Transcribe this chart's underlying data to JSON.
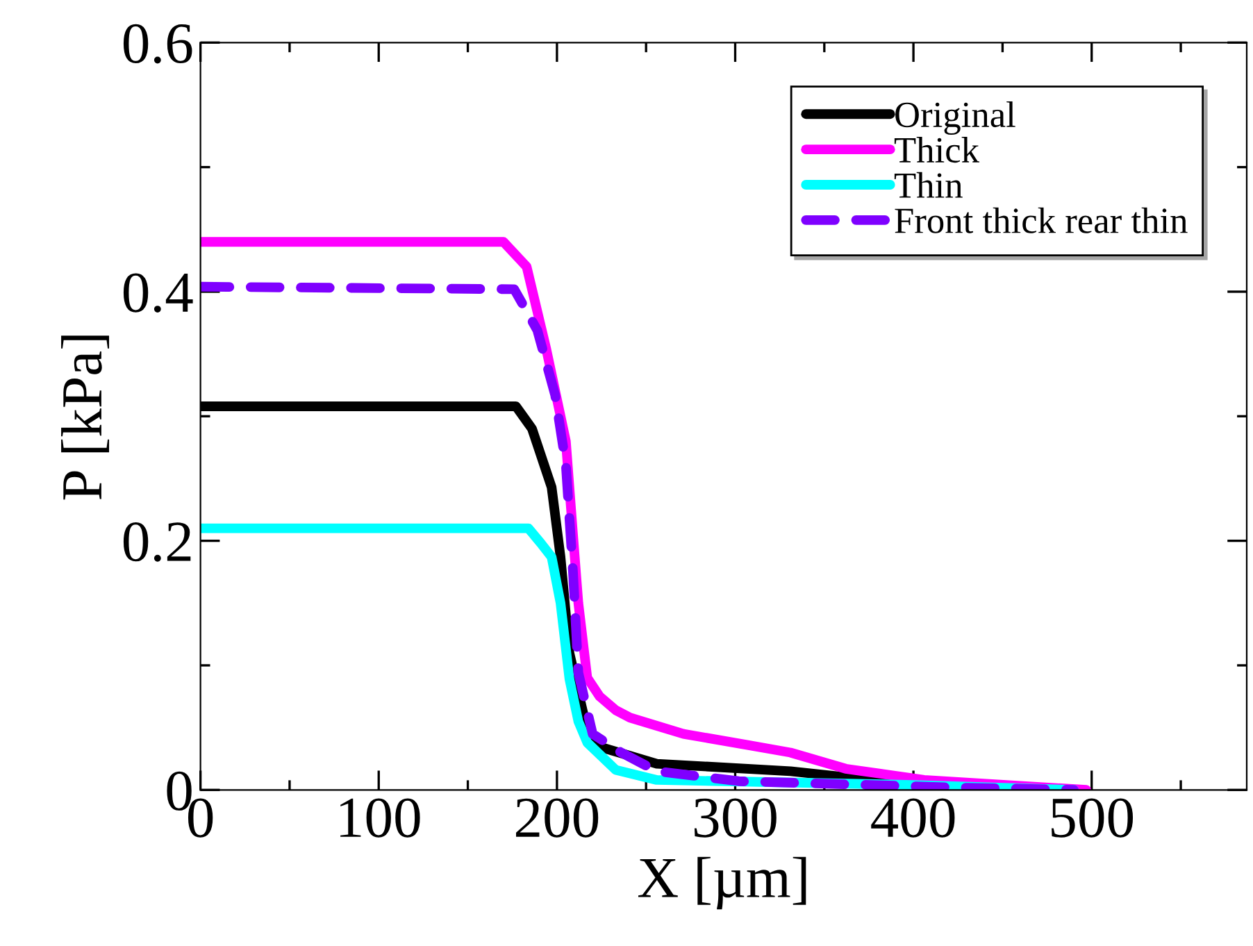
{
  "chart_data": {
    "type": "line",
    "xlabel": "X [µm]",
    "ylabel": "P [kPa]",
    "xlim": [
      0,
      587
    ],
    "ylim": [
      0,
      0.6
    ],
    "xticks": [
      0,
      100,
      200,
      300,
      400,
      500
    ],
    "yticks": [
      0,
      {
        "value": 0.2,
        "label": "0.2"
      },
      {
        "value": 0.4,
        "label": "0.4"
      },
      {
        "value": 0.6,
        "label": "0.6"
      }
    ],
    "grid": false,
    "legend": "top right",
    "marker": "none",
    "series": [
      {
        "name": "Original",
        "color": "#000000",
        "line_style": "solid",
        "x": [
          0,
          177,
          186,
          197,
          202,
          207,
          215,
          223,
          256,
          331,
          383,
          430
        ],
        "values": [
          0.308,
          0.308,
          0.29,
          0.243,
          0.187,
          0.11,
          0.06,
          0.035,
          0.021,
          0.015,
          0.007,
          0
        ]
      },
      {
        "name": "Thick",
        "color": "#ff00ff",
        "line_style": "solid",
        "x": [
          0,
          170,
          183,
          194,
          205,
          209,
          212,
          217,
          224,
          233,
          241,
          271,
          307,
          331,
          362,
          406,
          497
        ],
        "values": [
          0.44,
          0.44,
          0.42,
          0.354,
          0.28,
          0.205,
          0.15,
          0.09,
          0.075,
          0.064,
          0.058,
          0.045,
          0.036,
          0.03,
          0.017,
          0.008,
          0
        ]
      },
      {
        "name": "Thin",
        "color": "#00ffff",
        "line_style": "solid",
        "x": [
          0,
          184,
          191,
          197,
          202,
          207,
          212,
          217,
          233,
          256,
          400,
          490
        ],
        "values": [
          0.21,
          0.21,
          0.198,
          0.187,
          0.15,
          0.089,
          0.055,
          0.038,
          0.016,
          0.008,
          0.004,
          0
        ]
      },
      {
        "name": "Front thick rear thin",
        "color": "#7f00ff",
        "line_style": "dashed",
        "x": [
          0,
          176,
          189,
          199,
          205,
          209,
          212,
          220,
          236,
          256,
          302,
          422,
          490
        ],
        "values": [
          0.404,
          0.402,
          0.369,
          0.317,
          0.261,
          0.175,
          0.094,
          0.045,
          0.03,
          0.015,
          0.007,
          0.002,
          0
        ]
      }
    ]
  }
}
